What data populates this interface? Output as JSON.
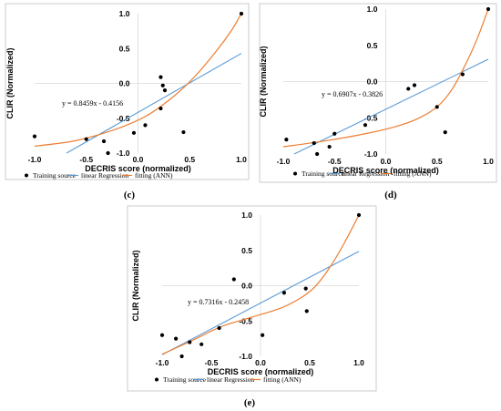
{
  "colors": {
    "linear": "#5b9bd5",
    "ann": "#ed7d31",
    "point": "#000000",
    "frame": "#bfbfbf",
    "grid": "#d9d9d9"
  },
  "chart_data": [
    {
      "caption": "(c)",
      "type": "scatter",
      "xlabel": "DECRIS score (normalized)",
      "ylabel": "CLIR (Normalized)",
      "xlim": [
        -1.0,
        1.0
      ],
      "ylim": [
        -1.0,
        1.0
      ],
      "xticks": [
        "-1.0",
        "-0.5",
        "0.0",
        "0.5",
        "1.0"
      ],
      "yticks": [
        "-1.0",
        "-0.5",
        "0.0",
        "0.5",
        "1.0"
      ],
      "equation": "y = 0.8459x - 0.4156",
      "legend": [
        "Training source",
        "linear Regression",
        "fitting (ANN)"
      ],
      "points": [
        [
          -1.0,
          -0.76
        ],
        [
          -0.5,
          -0.8
        ],
        [
          -0.33,
          -0.83
        ],
        [
          -0.29,
          -1.0
        ],
        [
          -0.04,
          -0.71
        ],
        [
          0.07,
          -0.6
        ],
        [
          0.22,
          0.09
        ],
        [
          0.22,
          -0.36
        ],
        [
          0.24,
          -0.03
        ],
        [
          0.26,
          -0.1
        ],
        [
          0.44,
          -0.7
        ],
        [
          1.0,
          1.0
        ]
      ],
      "regression": {
        "slope": 0.8459,
        "intercept": -0.4156
      },
      "ann_curve": [
        [
          -1.0,
          -0.9
        ],
        [
          -0.6,
          -0.82
        ],
        [
          -0.2,
          -0.65
        ],
        [
          0.1,
          -0.45
        ],
        [
          0.35,
          -0.18
        ],
        [
          0.55,
          0.1
        ],
        [
          0.75,
          0.45
        ],
        [
          0.9,
          0.75
        ],
        [
          1.0,
          1.0
        ]
      ]
    },
    {
      "caption": "(d)",
      "type": "scatter",
      "xlabel": "DECRIS score (normalized)",
      "ylabel": "CLIR (Normalized)",
      "xlim": [
        -1.0,
        1.0
      ],
      "ylim": [
        -1.0,
        1.0
      ],
      "xticks": [
        "-1.0",
        "-0.5",
        "0.0",
        "0.5",
        "1.0"
      ],
      "yticks": [
        "-1.0",
        "-0.5",
        "0.0",
        "0.5",
        "1.0"
      ],
      "equation": "y = 0.6907x - 0.3826",
      "legend": [
        "Training source",
        "linear Regression",
        "fitting (ANN)"
      ],
      "points": [
        [
          -0.97,
          -0.8
        ],
        [
          -0.7,
          -0.85
        ],
        [
          -0.67,
          -1.0
        ],
        [
          -0.55,
          -0.9
        ],
        [
          -0.5,
          -0.72
        ],
        [
          -0.2,
          -0.6
        ],
        [
          0.22,
          -0.1
        ],
        [
          0.28,
          -0.05
        ],
        [
          0.5,
          -0.35
        ],
        [
          0.58,
          -0.7
        ],
        [
          0.75,
          0.1
        ],
        [
          1.0,
          1.0
        ]
      ],
      "regression": {
        "slope": 0.6907,
        "intercept": -0.3826
      },
      "ann_curve": [
        [
          -1.0,
          -0.9
        ],
        [
          -0.6,
          -0.82
        ],
        [
          -0.2,
          -0.72
        ],
        [
          0.1,
          -0.62
        ],
        [
          0.3,
          -0.52
        ],
        [
          0.5,
          -0.35
        ],
        [
          0.65,
          -0.1
        ],
        [
          0.8,
          0.3
        ],
        [
          0.9,
          0.62
        ],
        [
          1.0,
          1.0
        ]
      ]
    },
    {
      "caption": "(e)",
      "type": "scatter",
      "xlabel": "DECRIS score (normalized)",
      "ylabel": "CLIR (Normalized)",
      "xlim": [
        -1.0,
        1.0
      ],
      "ylim": [
        -1.0,
        1.0
      ],
      "xticks": [
        "-1.0",
        "-0.5",
        "0.0",
        "0.5",
        "1.0"
      ],
      "yticks": [
        "-1.0",
        "-0.5",
        "0.0",
        "0.5",
        "1.0"
      ],
      "equation": "y = 0.7316x - 0.2458",
      "legend": [
        "Training source",
        "linear Regression",
        "fitting (ANN)"
      ],
      "points": [
        [
          -1.0,
          -0.7
        ],
        [
          -0.86,
          -0.75
        ],
        [
          -0.8,
          -1.0
        ],
        [
          -0.72,
          -0.8
        ],
        [
          -0.6,
          -0.83
        ],
        [
          -0.42,
          -0.6
        ],
        [
          -0.27,
          0.09
        ],
        [
          0.02,
          -0.7
        ],
        [
          0.24,
          -0.1
        ],
        [
          0.46,
          -0.04
        ],
        [
          0.47,
          -0.36
        ],
        [
          1.0,
          1.0
        ]
      ],
      "regression": {
        "slope": 0.7316,
        "intercept": -0.2458
      },
      "ann_curve": [
        [
          -1.0,
          -0.97
        ],
        [
          -0.7,
          -0.78
        ],
        [
          -0.4,
          -0.58
        ],
        [
          -0.1,
          -0.45
        ],
        [
          0.2,
          -0.32
        ],
        [
          0.4,
          -0.18
        ],
        [
          0.55,
          -0.02
        ],
        [
          0.7,
          0.25
        ],
        [
          0.85,
          0.6
        ],
        [
          1.0,
          1.0
        ]
      ]
    }
  ]
}
